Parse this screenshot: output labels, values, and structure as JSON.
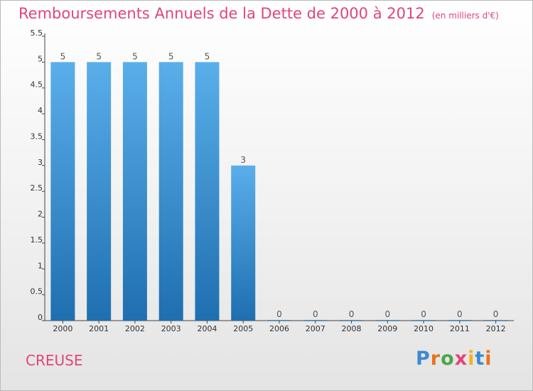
{
  "header": {
    "title": "Remboursements Annuels de la Dette de 2000 à 2012",
    "unit": "(en milliers d'€)"
  },
  "footer": {
    "region": "CREUSE",
    "logo": "Proxiti"
  },
  "colors": {
    "title": "#e0457b",
    "bar_top": "#5aaeea",
    "bar_bottom": "#1f6fb0",
    "logo_letters": [
      "#3d8ad0",
      "#e8731e",
      "#4aa64a",
      "#e0457b",
      "#f0b41e",
      "#3d8ad0",
      "#e8731e"
    ]
  },
  "chart_data": {
    "type": "bar",
    "title": "Remboursements Annuels de la Dette de 2000 à 2012",
    "xlabel": "",
    "ylabel": "",
    "categories": [
      "2000",
      "2001",
      "2002",
      "2003",
      "2004",
      "2005",
      "2006",
      "2007",
      "2008",
      "2009",
      "2010",
      "2011",
      "2012"
    ],
    "values": [
      5,
      5,
      5,
      5,
      5,
      3,
      0,
      0,
      0,
      0,
      0,
      0,
      0
    ],
    "data_labels": [
      "5",
      "5",
      "5",
      "5",
      "5",
      "3",
      "0",
      "0",
      "0",
      "0",
      "0",
      "0",
      "0"
    ],
    "ylim": [
      0,
      5.5
    ],
    "yticks": [
      0,
      0.5,
      1,
      1.5,
      2,
      2.5,
      3,
      3.5,
      4,
      4.5,
      5,
      5.5
    ],
    "ytick_labels": [
      "0",
      "0.5",
      "1",
      "1.5",
      "2",
      "2.5",
      "3",
      "3.5",
      "4",
      "4.5",
      "5",
      "5.5"
    ],
    "grid": false,
    "legend": "none"
  }
}
